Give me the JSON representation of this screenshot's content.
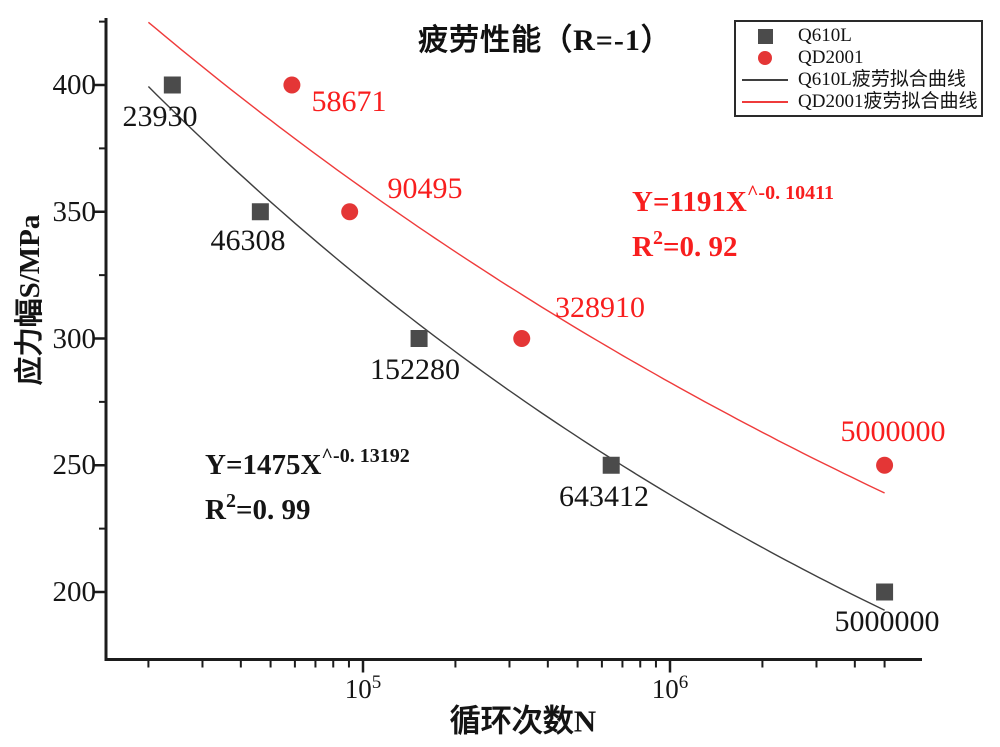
{
  "title": "疲劳性能（R=-1）",
  "colors": {
    "axis": "#1c1c1c",
    "black_series": "#4b4b4b",
    "red_series": "#e43636",
    "black_curve": "#3f3f3f",
    "red_curve": "#ef3b3b",
    "black_text": "#151515",
    "red_text": "#f81e1e"
  },
  "axes": {
    "x_label": "循环次数N",
    "y_label": "应力幅S/MPa",
    "x_scale": "log",
    "xlim": [
      14500,
      7000000
    ],
    "ylim": [
      173,
      429
    ],
    "x_ticks": [
      {
        "value": 100000,
        "base": "10",
        "exp": "5"
      },
      {
        "value": 1000000,
        "base": "10",
        "exp": "6"
      }
    ],
    "x_minor": [
      20000,
      30000,
      40000,
      50000,
      60000,
      70000,
      80000,
      90000,
      200000,
      300000,
      400000,
      500000,
      600000,
      700000,
      800000,
      900000,
      2000000,
      3000000,
      4000000,
      5000000
    ],
    "y_ticks": [
      {
        "value": 400,
        "label": "400"
      },
      {
        "value": 350,
        "label": "350"
      },
      {
        "value": 300,
        "label": "300"
      },
      {
        "value": 250,
        "label": "250"
      },
      {
        "value": 200,
        "label": "200"
      }
    ],
    "y_minor": [
      425,
      375,
      325,
      275,
      225
    ]
  },
  "chart_data": {
    "type": "scatter",
    "title": "疲劳性能（R=-1）",
    "xlabel": "循环次数N",
    "ylabel": "应力幅S/MPa",
    "x_scale": "log",
    "legend_position": "top-right",
    "grid": false,
    "series": [
      {
        "name": "Q610L",
        "marker": "square",
        "color": "#4b4b4b",
        "label_color": "#151515",
        "points": [
          {
            "x": 23930,
            "y": 400,
            "label": "23930",
            "lx": 160,
            "ly": 117
          },
          {
            "x": 46308,
            "y": 350,
            "label": "46308",
            "lx": 248,
            "ly": 241
          },
          {
            "x": 152280,
            "y": 300,
            "label": "152280",
            "lx": 415,
            "ly": 370
          },
          {
            "x": 643412,
            "y": 250,
            "label": "643412",
            "lx": 604,
            "ly": 497
          },
          {
            "x": 5000000,
            "y": 200,
            "label": "5000000",
            "lx": 887,
            "ly": 622
          }
        ],
        "fit": {
          "name": "Q610L疲劳拟合曲线",
          "curve_color": "#3f3f3f",
          "coef": 1475,
          "exponent": -0.13192,
          "r2": 0.99,
          "range": [
            20000,
            5000000
          ],
          "eq_base": "Y=1475X",
          "eq_sup": "^-0. 13192",
          "r2_base": "R",
          "r2_sup": "2",
          "r2_rest": "=0. 99"
        }
      },
      {
        "name": "QD2001",
        "marker": "circle",
        "color": "#e43636",
        "label_color": "#f81e1e",
        "points": [
          {
            "x": 58671,
            "y": 400,
            "label": "58671",
            "lx": 349,
            "ly": 102
          },
          {
            "x": 90495,
            "y": 350,
            "label": "90495",
            "lx": 425,
            "ly": 189
          },
          {
            "x": 328910,
            "y": 300,
            "label": "328910",
            "lx": 600,
            "ly": 308
          },
          {
            "x": 5000000,
            "y": 250,
            "label": "5000000",
            "lx": 893,
            "ly": 432
          }
        ],
        "fit": {
          "name": "QD2001疲劳拟合曲线",
          "curve_color": "#ef3b3b",
          "coef": 1191,
          "exponent": -0.10411,
          "r2": 0.92,
          "range": [
            20000,
            5000000
          ],
          "eq_base": "Y=1191X",
          "eq_sup": "^-0. 10411",
          "r2_base": "R",
          "r2_sup": "2",
          "r2_rest": "=0. 92"
        }
      }
    ]
  },
  "legend": {
    "items": [
      {
        "symbol": "square",
        "color": "#4b4b4b",
        "label": "Q610L"
      },
      {
        "symbol": "circle",
        "color": "#e43636",
        "label": "QD2001"
      },
      {
        "symbol": "line",
        "color": "#3f3f3f",
        "label": "Q610L疲劳拟合曲线"
      },
      {
        "symbol": "line",
        "color": "#ef3b3b",
        "label": "QD2001疲劳拟合曲线"
      }
    ]
  }
}
